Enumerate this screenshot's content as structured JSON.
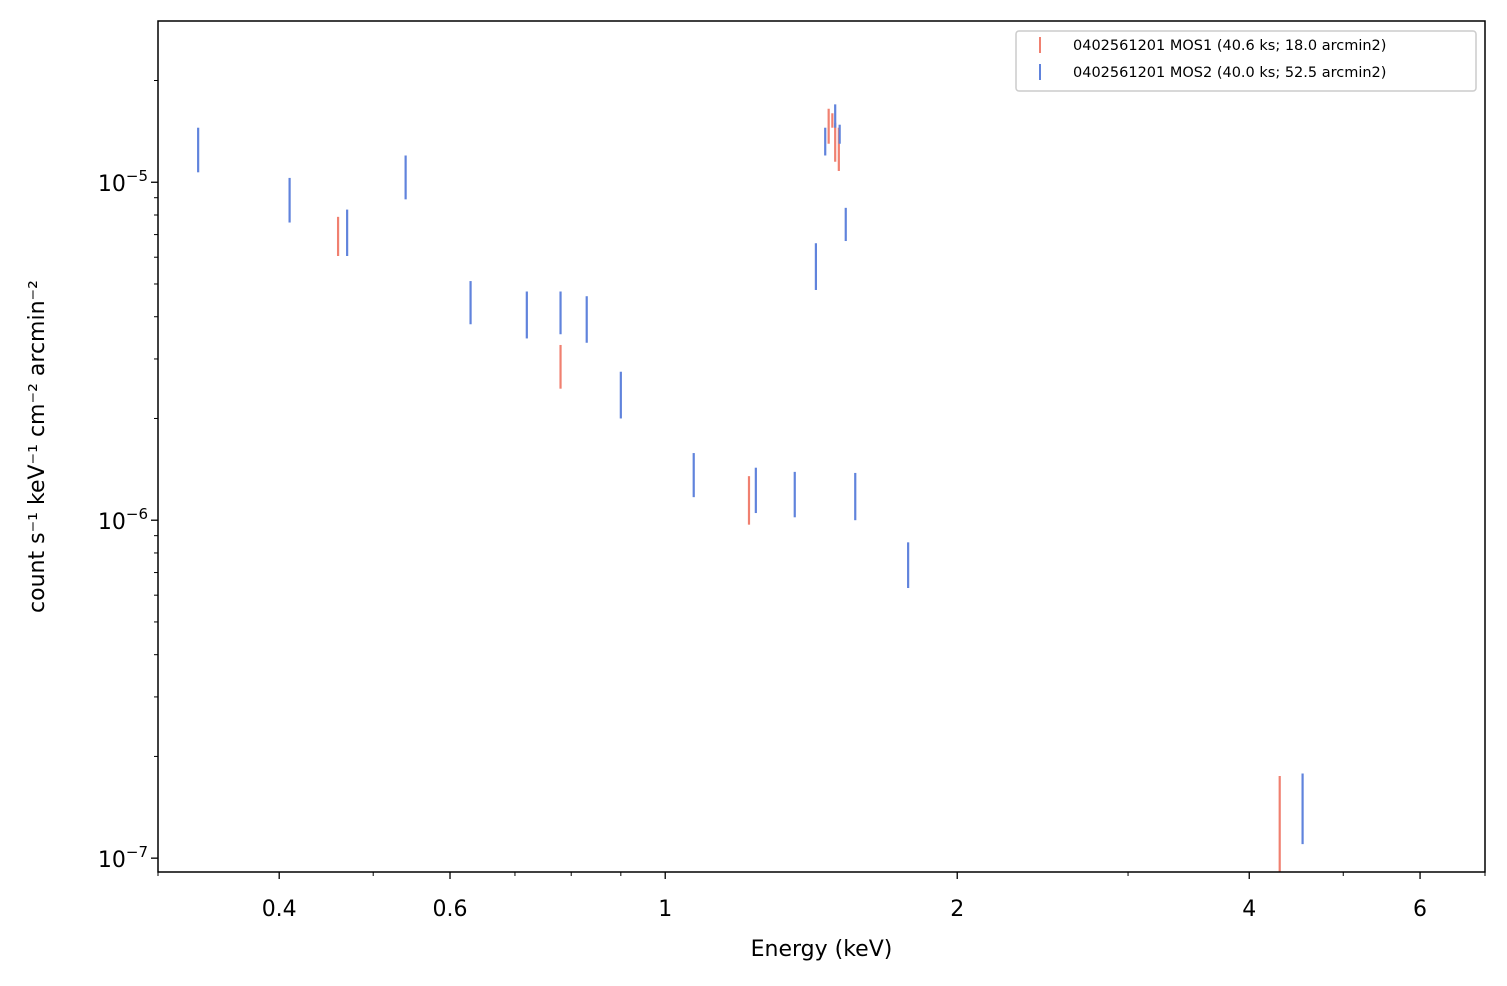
{
  "chart_data": {
    "type": "errorbar",
    "xlabel": "Energy (keV)",
    "ylabel": "count s⁻¹ keV⁻¹ cm⁻² arcmin⁻²",
    "x_scale": "log",
    "y_scale": "log",
    "xlim": [
      0.3,
      7.0
    ],
    "ylim": [
      9.1e-08,
      3e-05
    ],
    "x_ticks": [
      {
        "value": 0.4,
        "label": "0.4"
      },
      {
        "value": 0.6,
        "label": "0.6"
      },
      {
        "value": 1,
        "label": "1"
      },
      {
        "value": 2,
        "label": "2"
      },
      {
        "value": 4,
        "label": "4"
      },
      {
        "value": 6,
        "label": "6"
      }
    ],
    "y_ticks": [
      {
        "value": 1e-07,
        "base": "10",
        "exp": "−7"
      },
      {
        "value": 1e-06,
        "base": "10",
        "exp": "−6"
      },
      {
        "value": 1e-05,
        "base": "10",
        "exp": "−5"
      }
    ],
    "grid": false,
    "legend_position": "top-right",
    "series": [
      {
        "name": "0402561201 MOS1 (40.6 ks; 18.0 arcmin2)",
        "color": "#f08070",
        "points": [
          {
            "x": 0.46,
            "ylow": 6.05e-06,
            "yhigh": 7.9e-06
          },
          {
            "x": 0.78,
            "ylow": 2.45e-06,
            "yhigh": 3.3e-06
          },
          {
            "x": 1.22,
            "ylow": 9.7e-07,
            "yhigh": 1.35e-06
          },
          {
            "x": 1.474,
            "ylow": 1.3e-05,
            "yhigh": 1.65e-05
          },
          {
            "x": 1.487,
            "ylow": 1.45e-05,
            "yhigh": 1.6e-05
          },
          {
            "x": 1.497,
            "ylow": 1.15e-05,
            "yhigh": 1.5e-05
          },
          {
            "x": 1.51,
            "ylow": 1.08e-05,
            "yhigh": 1.45e-05
          },
          {
            "x": 4.3,
            "ylow": 9e-08,
            "yhigh": 1.75e-07
          }
        ]
      },
      {
        "name": "0402561201 MOS2 (40.0 ks; 52.5 arcmin2)",
        "color": "#6083dc",
        "points": [
          {
            "x": 0.33,
            "ylow": 1.07e-05,
            "yhigh": 1.45e-05
          },
          {
            "x": 0.41,
            "ylow": 7.6e-06,
            "yhigh": 1.03e-05
          },
          {
            "x": 0.47,
            "ylow": 6.05e-06,
            "yhigh": 8.3e-06
          },
          {
            "x": 0.54,
            "ylow": 8.9e-06,
            "yhigh": 1.2e-05
          },
          {
            "x": 0.63,
            "ylow": 3.8e-06,
            "yhigh": 5.1e-06
          },
          {
            "x": 0.72,
            "ylow": 3.45e-06,
            "yhigh": 4.75e-06
          },
          {
            "x": 0.78,
            "ylow": 3.55e-06,
            "yhigh": 4.75e-06
          },
          {
            "x": 0.83,
            "ylow": 3.35e-06,
            "yhigh": 4.6e-06
          },
          {
            "x": 0.9,
            "ylow": 2e-06,
            "yhigh": 2.75e-06
          },
          {
            "x": 1.07,
            "ylow": 1.17e-06,
            "yhigh": 1.58e-06
          },
          {
            "x": 1.24,
            "ylow": 1.05e-06,
            "yhigh": 1.43e-06
          },
          {
            "x": 1.36,
            "ylow": 1.02e-06,
            "yhigh": 1.39e-06
          },
          {
            "x": 1.43,
            "ylow": 4.8e-06,
            "yhigh": 6.6e-06
          },
          {
            "x": 1.462,
            "ylow": 1.2e-05,
            "yhigh": 1.45e-05
          },
          {
            "x": 1.497,
            "ylow": 1.45e-05,
            "yhigh": 1.7e-05
          },
          {
            "x": 1.513,
            "ylow": 1.3e-05,
            "yhigh": 1.48e-05
          },
          {
            "x": 1.535,
            "ylow": 6.7e-06,
            "yhigh": 8.4e-06
          },
          {
            "x": 1.57,
            "ylow": 1e-06,
            "yhigh": 1.38e-06
          },
          {
            "x": 1.78,
            "ylow": 6.3e-07,
            "yhigh": 8.6e-07
          },
          {
            "x": 4.54,
            "ylow": 1.1e-07,
            "yhigh": 1.78e-07
          }
        ]
      }
    ]
  }
}
